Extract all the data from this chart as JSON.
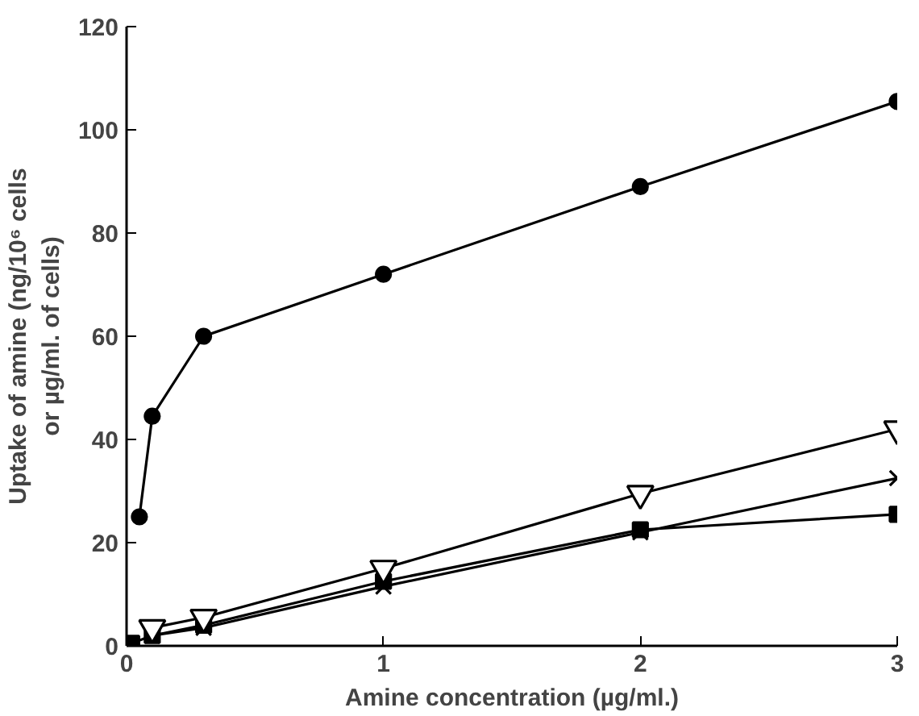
{
  "chart_data": {
    "type": "line",
    "xlabel": "Amine concentration (µg/ml.)",
    "ylabel": "Uptake of amine (ng/10⁶ cells\nor µg/ml. of cells)",
    "xlim": [
      0,
      3
    ],
    "xticks": [
      0,
      1,
      2,
      3
    ],
    "ylim": [
      0,
      120
    ],
    "yticks": [
      0,
      20,
      40,
      60,
      80,
      100,
      120
    ],
    "grid": false,
    "line_style": "solid",
    "series": [
      {
        "color": "#000000",
        "marker": "circle",
        "x": [
          0.05,
          0.1,
          0.3,
          1,
          2,
          3
        ],
        "values": [
          25,
          44.5,
          60,
          72,
          89,
          105.5
        ]
      },
      {
        "color": "#000000",
        "marker": "triangle",
        "x": [
          0.1,
          0.3,
          1,
          2,
          3
        ],
        "values": [
          3.5,
          5.5,
          15,
          29.5,
          42
        ]
      },
      {
        "color": "#000000",
        "marker": "cross",
        "x": [
          0.1,
          0.3,
          1,
          2,
          3
        ],
        "values": [
          2,
          3.5,
          11.5,
          22,
          32.5
        ]
      },
      {
        "color": "#000000",
        "marker": "square",
        "x": [
          0.02,
          0.1,
          0.3,
          1,
          2,
          3
        ],
        "values": [
          0.5,
          2,
          4,
          12.5,
          22.5,
          25.5
        ]
      }
    ]
  }
}
